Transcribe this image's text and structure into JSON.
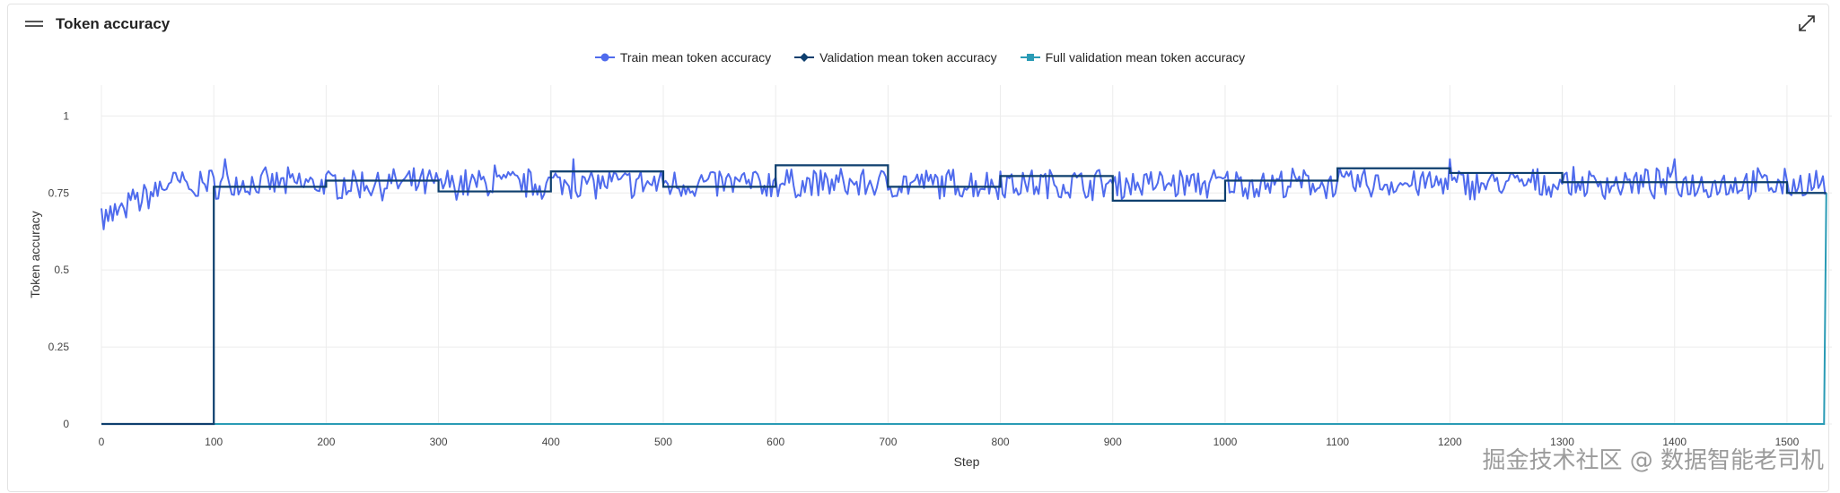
{
  "panel": {
    "title": "Token accuracy",
    "watermark": "掘金技术社区 @ 数据智能老司机"
  },
  "chart_data": {
    "type": "line",
    "title": "Token accuracy",
    "xlabel": "Step",
    "ylabel": "Token accuracy",
    "xlim": [
      0,
      1540
    ],
    "ylim": [
      0,
      1.1
    ],
    "x_ticks": [
      "0",
      "100",
      "200",
      "300",
      "400",
      "500",
      "600",
      "700",
      "800",
      "900",
      "1000",
      "1100",
      "1200",
      "1300",
      "1400",
      "1500"
    ],
    "y_ticks": [
      "0",
      "0.25",
      "0.5",
      "0.75",
      "1"
    ],
    "grid": true,
    "legend_position": "top",
    "series": [
      {
        "name": "Train mean token accuracy",
        "color": "#4f6bed",
        "marker": "circle",
        "summary": {
          "start": 0.66,
          "ramp_to_step": 60,
          "plateau_mean": 0.78,
          "spread": 0.045
        },
        "points": [
          [
            0,
            0.7
          ],
          [
            5,
            0.62
          ],
          [
            10,
            0.66
          ],
          [
            15,
            0.64
          ],
          [
            20,
            0.7
          ],
          [
            25,
            0.69
          ],
          [
            30,
            0.73
          ],
          [
            35,
            0.72
          ],
          [
            40,
            0.76
          ],
          [
            50,
            0.74
          ],
          [
            60,
            0.78
          ],
          [
            80,
            0.76
          ],
          [
            100,
            0.8
          ],
          [
            110,
            0.86
          ],
          [
            200,
            0.81
          ],
          [
            300,
            0.79
          ],
          [
            350,
            0.84
          ],
          [
            400,
            0.8
          ],
          [
            420,
            0.86
          ],
          [
            500,
            0.78
          ],
          [
            600,
            0.8
          ],
          [
            700,
            0.76
          ],
          [
            800,
            0.82
          ],
          [
            900,
            0.78
          ],
          [
            1000,
            0.8
          ],
          [
            1100,
            0.79
          ],
          [
            1200,
            0.86
          ],
          [
            1300,
            0.78
          ],
          [
            1400,
            0.86
          ],
          [
            1500,
            0.79
          ],
          [
            1535,
            0.82
          ]
        ]
      },
      {
        "name": "Validation mean token accuracy",
        "color": "#0e3f6e",
        "marker": "diamond",
        "steps": [
          {
            "from": 0,
            "to": 100,
            "value": 0
          },
          {
            "from": 100,
            "to": 200,
            "value": 0.77
          },
          {
            "from": 200,
            "to": 300,
            "value": 0.79
          },
          {
            "from": 300,
            "to": 400,
            "value": 0.755
          },
          {
            "from": 400,
            "to": 500,
            "value": 0.82
          },
          {
            "from": 500,
            "to": 600,
            "value": 0.77
          },
          {
            "from": 600,
            "to": 700,
            "value": 0.84
          },
          {
            "from": 700,
            "to": 800,
            "value": 0.77
          },
          {
            "from": 800,
            "to": 900,
            "value": 0.805
          },
          {
            "from": 900,
            "to": 1000,
            "value": 0.725
          },
          {
            "from": 1000,
            "to": 1100,
            "value": 0.79
          },
          {
            "from": 1100,
            "to": 1200,
            "value": 0.83
          },
          {
            "from": 1200,
            "to": 1300,
            "value": 0.815
          },
          {
            "from": 1300,
            "to": 1500,
            "value": 0.785
          },
          {
            "from": 1500,
            "to": 1535,
            "value": 0.75
          }
        ]
      },
      {
        "name": "Full validation mean token accuracy",
        "color": "#2a9bb5",
        "marker": "square",
        "points": [
          [
            0,
            0
          ],
          [
            1533,
            0
          ],
          [
            1535,
            0.75
          ]
        ]
      }
    ]
  }
}
